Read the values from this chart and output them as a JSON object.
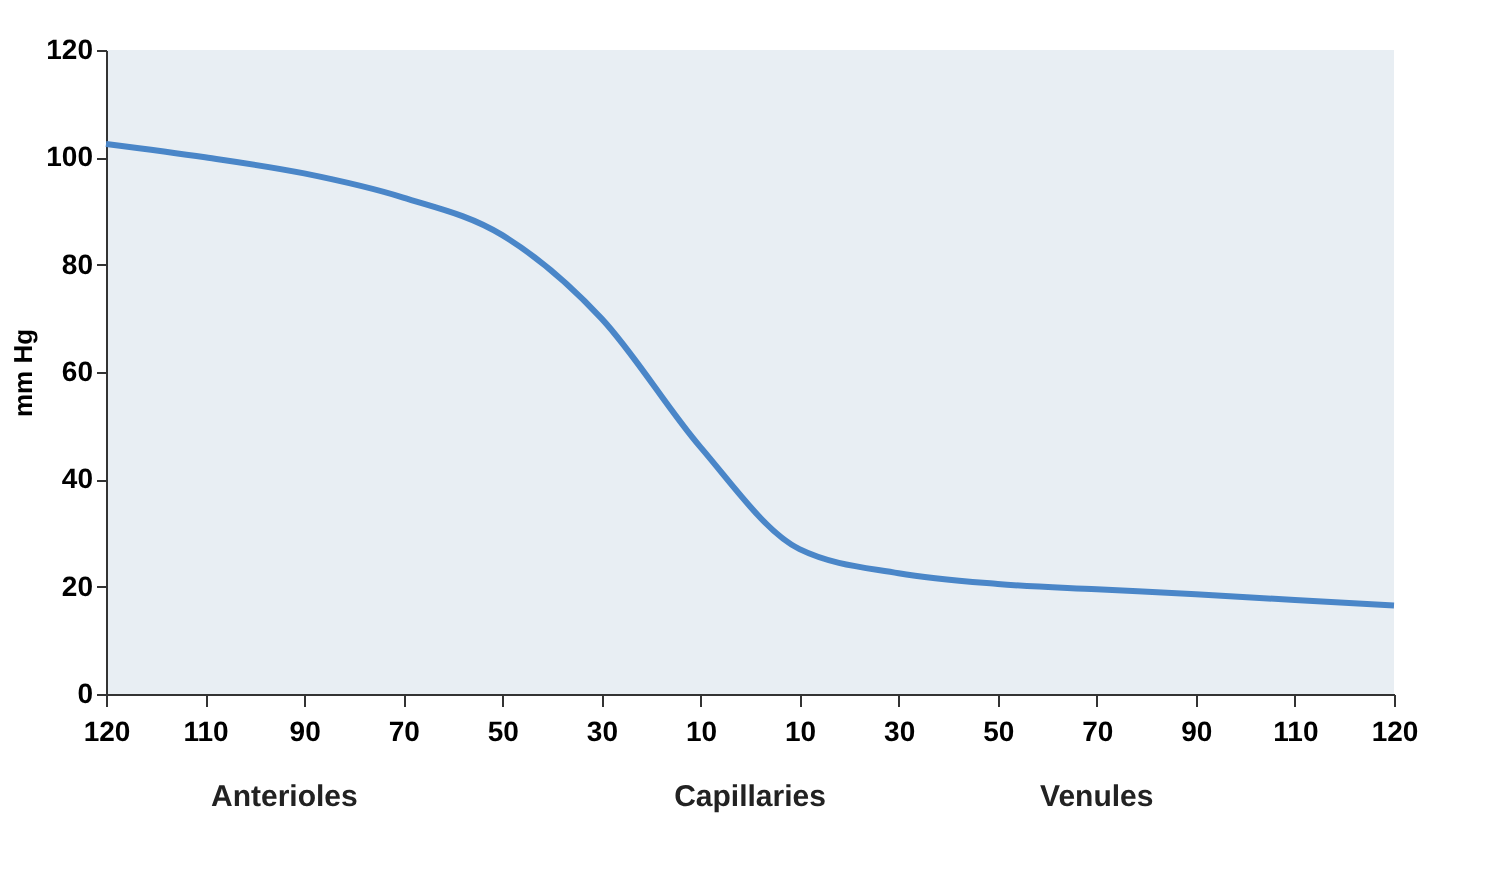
{
  "chart_data": {
    "type": "line",
    "categories": [
      "120",
      "110",
      "90",
      "70",
      "50",
      "30",
      "10",
      "10",
      "30",
      "50",
      "70",
      "90",
      "110",
      "120"
    ],
    "series": [
      {
        "color": "#4a86c8",
        "values": [
          102.5,
          100,
          97,
          92.5,
          85.5,
          70,
          46,
          27,
          22.5,
          20.5,
          19.5,
          18.6,
          17.5,
          16.5
        ]
      }
    ],
    "ylabel": "mm Hg",
    "ylim": [
      0,
      120
    ],
    "yticks": [
      0,
      20,
      40,
      60,
      80,
      100,
      120
    ],
    "annotations": [
      "Anterioles",
      "Capillaries",
      "Venules"
    ],
    "grid": false,
    "marker": "none",
    "line_style": "solid"
  }
}
